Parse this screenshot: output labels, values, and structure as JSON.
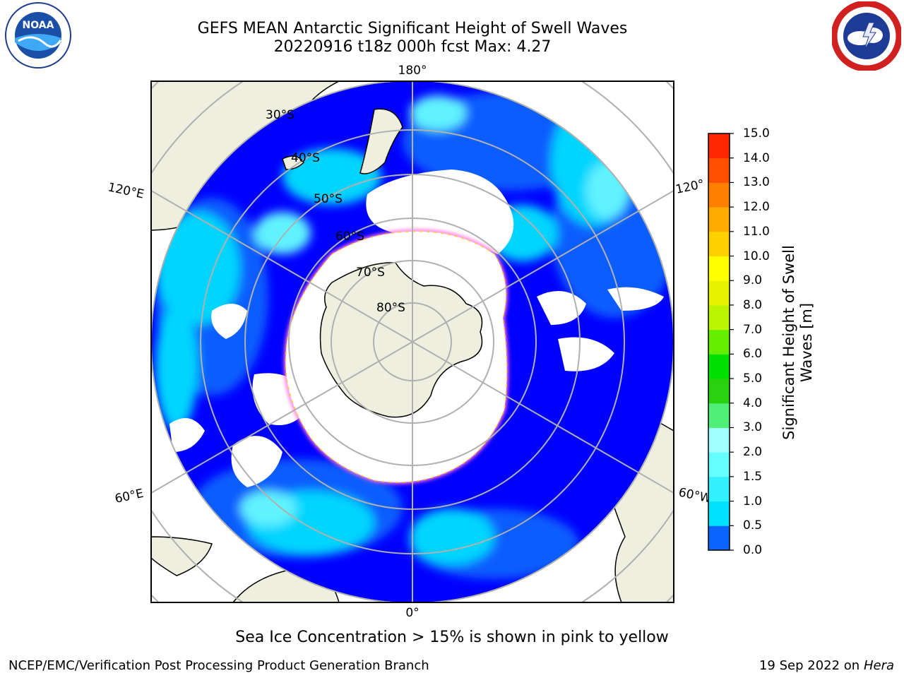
{
  "title_line1": "GEFS MEAN Antarctic Significant Height of Swell Waves",
  "title_line2": "20220916 t18z 000h fcst   Max: 4.27",
  "logos": {
    "left": "noaa-logo",
    "right": "nws-logo"
  },
  "map": {
    "projection": "south-polar-stereographic",
    "longitude_labels": [
      "180°",
      "120°E",
      "120°",
      "60°E",
      "60°W",
      "0°"
    ],
    "latitude_labels": [
      "30°S",
      "40°S",
      "50°S",
      "60°S",
      "70°S",
      "80°S"
    ],
    "land_color": "#efefdf",
    "grid_color": "#b0b0b0"
  },
  "colorbar": {
    "label": "Significant Height of Swell Waves [m]",
    "ticks": [
      "0.0",
      "0.5",
      "1.0",
      "1.5",
      "2.0",
      "3.0",
      "4.0",
      "5.0",
      "6.0",
      "7.0",
      "8.0",
      "9.0",
      "10.0",
      "11.0",
      "12.0",
      "13.0",
      "14.0",
      "15.0"
    ],
    "colors": [
      "#0000ff",
      "#0a64ff",
      "#00e1ff",
      "#33f0ff",
      "#66ffff",
      "#a0ffff",
      "#50f078",
      "#29d10f",
      "#00e000",
      "#66ee00",
      "#bbf400",
      "#e6f200",
      "#ffff00",
      "#ffd000",
      "#ffaa00",
      "#ff8000",
      "#ff5000",
      "#ff2800",
      "#ff0000"
    ]
  },
  "sea_ice_note": "Sea Ice Concentration > 15% is shown in pink to yellow",
  "footer_left": "NCEP/EMC/Verification Post Processing Product Generation Branch",
  "footer_right_prefix": "19 Sep 2022 on",
  "footer_right_machine": "Hera"
}
